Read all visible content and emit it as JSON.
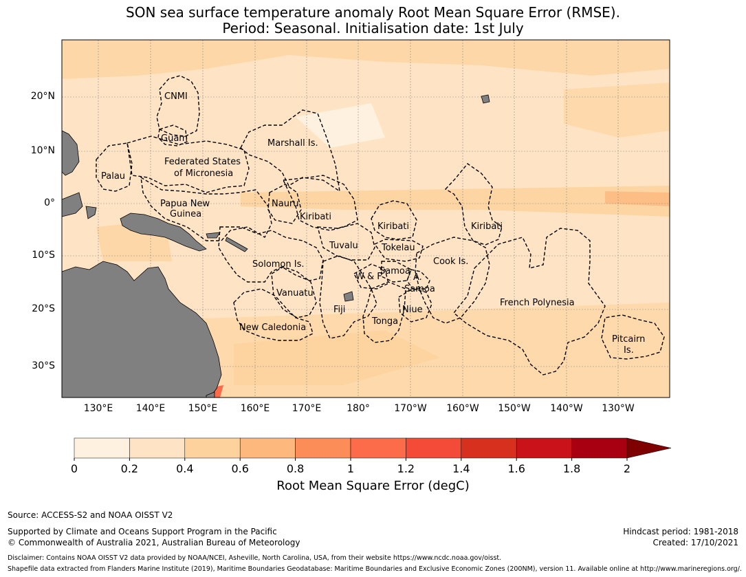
{
  "title": {
    "line1": "SON sea surface temperature anomaly Root Mean Square Error (RMSE).",
    "line2": "Period: Seasonal. Initialisation date: 1st July"
  },
  "axes": {
    "latitudes": [
      "20°N",
      "10°N",
      "0°",
      "10°S",
      "20°S",
      "30°S"
    ],
    "longitudes": [
      "130°E",
      "140°E",
      "150°E",
      "160°E",
      "170°E",
      "180°",
      "170°W",
      "160°W",
      "150°W",
      "140°W",
      "130°W"
    ]
  },
  "regions": [
    "CNMI",
    "Guam",
    "Marshall Is.",
    "Palau",
    "Federated States",
    "of Micronesia",
    "Papua New",
    "Guinea",
    "Nauru",
    "Kiribati",
    "Kiribati",
    "Kiribati",
    "Tuvalu",
    "Tokelau",
    "Solomon Is.",
    "Samoa",
    "W & F",
    "A.",
    "Samoa",
    "Cook Is.",
    "Vanuatu",
    "Fiji",
    "Niue",
    "Tonga",
    "French Polynesia",
    "New Caledonia",
    "Pitcairn",
    "Is."
  ],
  "colorbar": {
    "ticks": [
      "0",
      "0.2",
      "0.4",
      "0.6",
      "0.8",
      "1",
      "1.2",
      "1.4",
      "1.6",
      "1.8",
      "2"
    ],
    "colors": [
      "#fff1e0",
      "#fee4c4",
      "#fdd29d",
      "#fdb87d",
      "#fc8d59",
      "#fc6b4a",
      "#f44b38",
      "#d7301f",
      "#c9121a",
      "#a80010"
    ],
    "extend_color": "#7f0000",
    "label": "Root Mean Square Error (degC)"
  },
  "footer": {
    "source": "Source: ACCESS-S2 and NOAA OISST V2",
    "supported": "Supported by Climate and Oceans Support Program in the Pacific",
    "copyright": "© Commonwealth of Australia 2021, Australian Bureau of Meteorology",
    "hindcast": "Hindcast period: 1981-2018",
    "created": "Created: 17/10/2021",
    "disclaimer": "Disclaimer: Contains NOAA OISST V2 data provided by NOAA/NCEI, Asheville, North Carolina, USA, from their website https://www.ncdc.noaa.gov/oisst.",
    "shapefile": "Shapefile data extracted from Flanders Marine Institute (2019), Maritime Boundaries Geodatabase: Maritime Boundaries and Exclusive Economic Zones (200NM), version 11. Available online at http://www.marineregions.org/."
  }
}
